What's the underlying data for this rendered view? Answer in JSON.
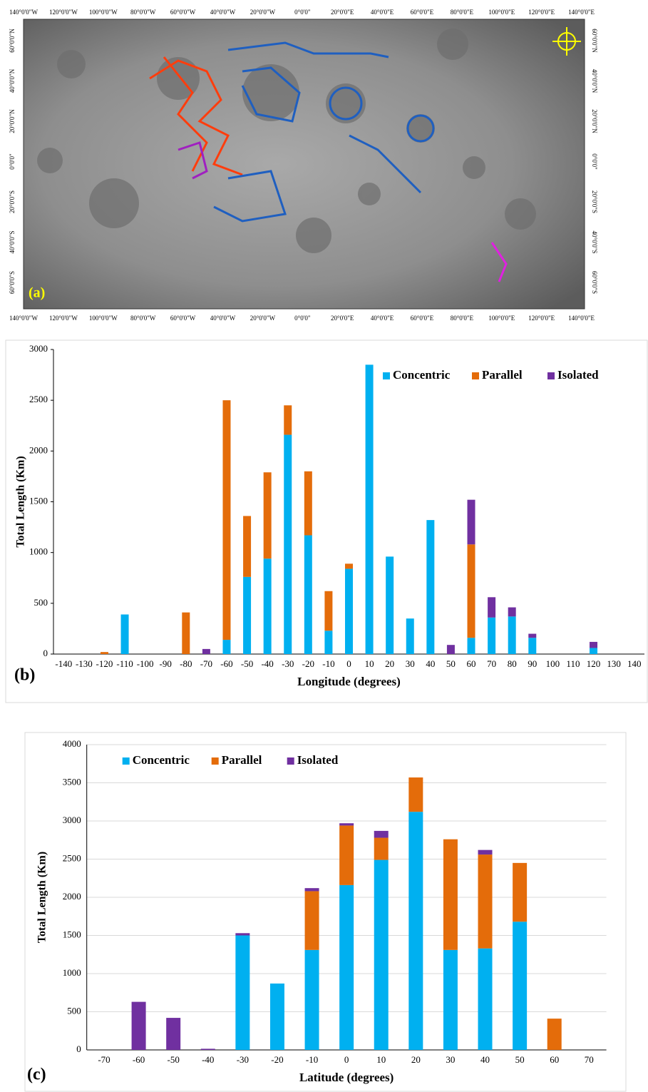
{
  "map": {
    "panel_label": "(a)",
    "lon_labels": [
      "140°0'0\"W",
      "120°0'0\"W",
      "100°0'0\"W",
      "80°0'0\"W",
      "60°0'0\"W",
      "40°0'0\"W",
      "20°0'0\"W",
      "0°0'0\"",
      "20°0'0\"E",
      "40°0'0\"E",
      "60°0'0\"E",
      "80°0'0\"E",
      "100°0'0\"E",
      "120°0'0\"E",
      "140°0'0\"E"
    ],
    "lat_labels": [
      "60°0'0\"N",
      "40°0'0\"N",
      "20°0'0\"N",
      "0°0'0\"",
      "20°0'0\"S",
      "40°0'0\"S",
      "60°0'0\"S"
    ]
  },
  "chart_data": [
    {
      "type": "bar",
      "stacked": true,
      "panel_label": "(b)",
      "x_label": "Longitude (degrees)",
      "y_label": "Total Length (Km)",
      "categories": [
        -140,
        -130,
        -120,
        -110,
        -100,
        -90,
        -80,
        -70,
        -60,
        -50,
        -40,
        -30,
        -20,
        -10,
        0,
        10,
        20,
        30,
        40,
        50,
        60,
        70,
        80,
        90,
        100,
        110,
        120,
        130,
        140
      ],
      "series": [
        {
          "name": "Concentric",
          "color": "#00b0f0",
          "values": [
            0,
            0,
            0,
            390,
            0,
            0,
            0,
            0,
            140,
            760,
            940,
            2160,
            1170,
            230,
            840,
            2850,
            960,
            350,
            1320,
            0,
            160,
            360,
            370,
            160,
            0,
            0,
            60,
            0,
            0
          ]
        },
        {
          "name": "Parallel",
          "color": "#e46c0a",
          "values": [
            0,
            0,
            20,
            0,
            0,
            0,
            410,
            0,
            2360,
            600,
            850,
            290,
            630,
            390,
            50,
            0,
            0,
            0,
            0,
            0,
            920,
            0,
            0,
            0,
            0,
            0,
            0,
            0,
            0
          ]
        },
        {
          "name": "Isolated",
          "color": "#7030a0",
          "values": [
            0,
            0,
            0,
            0,
            0,
            0,
            0,
            50,
            0,
            0,
            0,
            0,
            0,
            0,
            0,
            0,
            0,
            0,
            0,
            90,
            440,
            200,
            90,
            40,
            0,
            0,
            60,
            0,
            0
          ]
        }
      ],
      "ylim": [
        0,
        3000
      ],
      "yticks": [
        0,
        500,
        1000,
        1500,
        2000,
        2500,
        3000
      ],
      "grid": false,
      "legend": "upper right"
    },
    {
      "type": "bar",
      "stacked": true,
      "panel_label": "(c)",
      "x_label": "Latitude (degrees)",
      "y_label": "Total Length (Km)",
      "categories": [
        -70,
        -60,
        -50,
        -40,
        -30,
        -20,
        -10,
        0,
        10,
        20,
        30,
        40,
        50,
        60,
        70
      ],
      "series": [
        {
          "name": "Concentric",
          "color": "#00b0f0",
          "values": [
            0,
            0,
            0,
            0,
            1500,
            870,
            1310,
            2160,
            2490,
            3120,
            1310,
            1330,
            1680,
            0,
            0
          ]
        },
        {
          "name": "Parallel",
          "color": "#e46c0a",
          "values": [
            0,
            0,
            0,
            0,
            0,
            0,
            770,
            780,
            290,
            450,
            1450,
            1230,
            770,
            410,
            0
          ]
        },
        {
          "name": "Isolated",
          "color": "#7030a0",
          "values": [
            0,
            630,
            420,
            15,
            30,
            0,
            40,
            30,
            90,
            0,
            0,
            60,
            0,
            0,
            0
          ]
        }
      ],
      "ylim": [
        0,
        4000
      ],
      "yticks": [
        0,
        500,
        1000,
        1500,
        2000,
        2500,
        3000,
        3500,
        4000
      ],
      "grid": true,
      "legend": "upper left"
    }
  ]
}
